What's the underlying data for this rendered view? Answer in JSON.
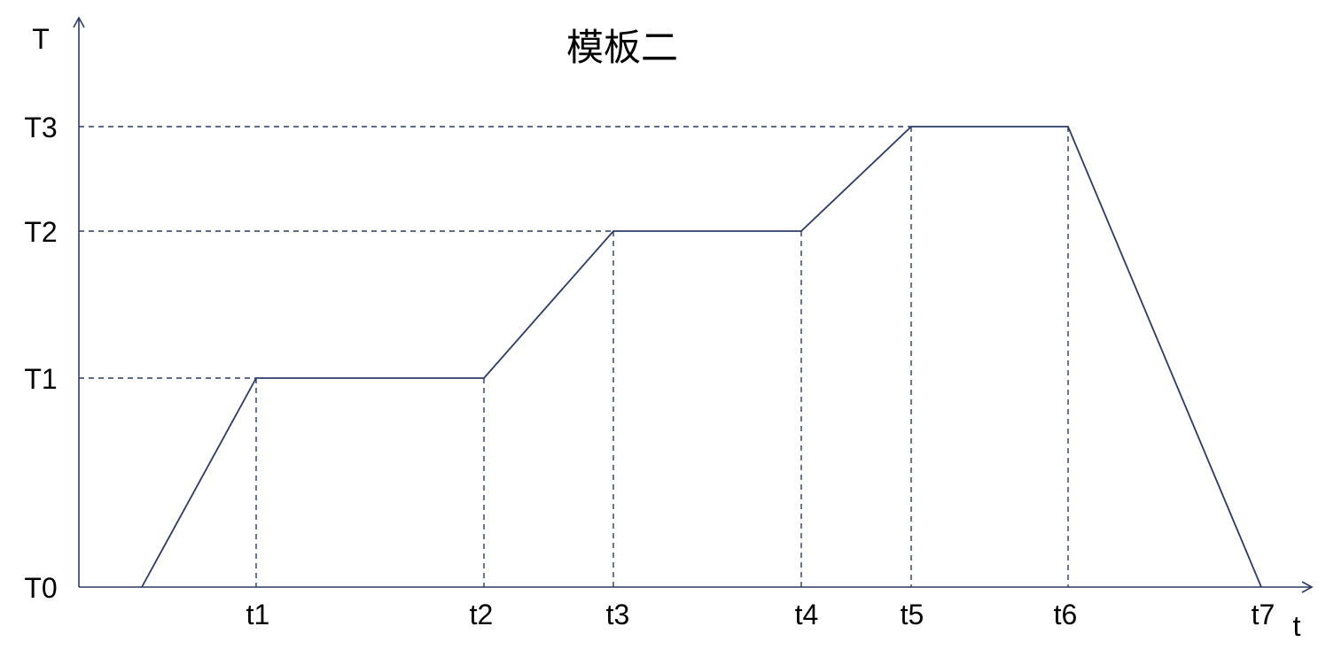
{
  "title": "模板二",
  "axes": {
    "y_label": "T",
    "x_label": "t"
  },
  "y_levels": [
    "T0",
    "T1",
    "T2",
    "T3"
  ],
  "x_marks": [
    "t1",
    "t2",
    "t3",
    "t4",
    "t5",
    "t6",
    "t7"
  ],
  "profile": {
    "description_points": [
      {
        "t": "start",
        "T": "T0"
      },
      {
        "t": "t1",
        "T": "T1"
      },
      {
        "t": "t2",
        "T": "T1"
      },
      {
        "t": "t3",
        "T": "T2"
      },
      {
        "t": "t4",
        "T": "T2"
      },
      {
        "t": "t5",
        "T": "T3"
      },
      {
        "t": "t6",
        "T": "T3"
      },
      {
        "t": "t7",
        "T": "T0"
      }
    ]
  },
  "colors": {
    "line": "#2b3a67",
    "axis": "#2b3a67",
    "guide": "#2b3a67",
    "text": "#000000"
  }
}
